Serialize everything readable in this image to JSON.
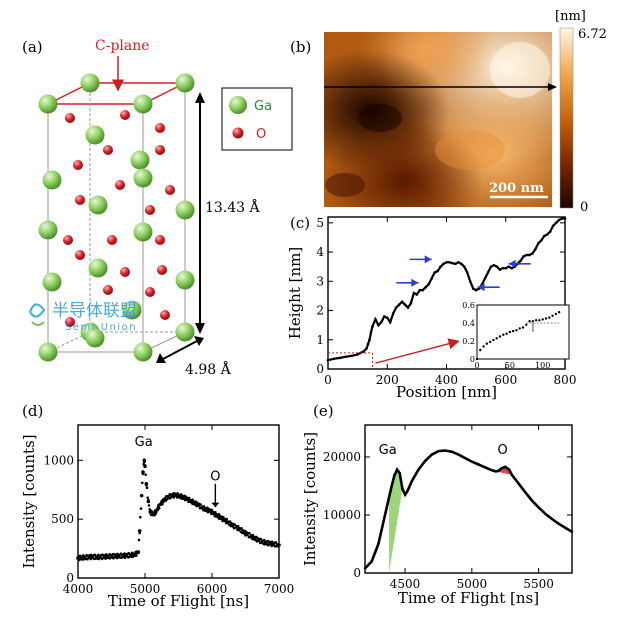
{
  "panel_labels": {
    "a": "(a)",
    "b": "(b)",
    "c": "(c)",
    "d": "(d)",
    "e": "(e)"
  },
  "crystal": {
    "c_plane_label": "C-plane",
    "legend": [
      {
        "label": "Ga",
        "color": "#7dc455",
        "text_color": "#1e8c3a"
      },
      {
        "label": "O",
        "color": "#d42028",
        "text_color": "#d42028"
      }
    ],
    "c_axis_label": "13.43 Å",
    "a_axis_label": "4.98 Å",
    "watermark": {
      "cn": "半导体联盟",
      "en": "Semi Union"
    }
  },
  "afm": {
    "colorbar_unit": "[nm]",
    "colorbar_max": "6.72",
    "colorbar_min": "0",
    "scalebar_label": "200 nm"
  },
  "chart_data": [
    {
      "id": "c",
      "type": "line",
      "xlabel": "Position [nm]",
      "ylabel": "Height [nm]",
      "xlim": [
        0,
        800
      ],
      "ylim": [
        0,
        5.2
      ],
      "xticks": [
        0,
        200,
        400,
        600,
        800
      ],
      "yticks": [
        0,
        1,
        2,
        3,
        4,
        5
      ],
      "series": [
        {
          "x": [
            0,
            20,
            40,
            60,
            80,
            100,
            110,
            120,
            130,
            135,
            140,
            145,
            150,
            160,
            170,
            180,
            190,
            200,
            210,
            220,
            230,
            240,
            250,
            260,
            270,
            280,
            290,
            300,
            310,
            320,
            330,
            340,
            350,
            360,
            370,
            380,
            390,
            400,
            410,
            420,
            430,
            440,
            450,
            460,
            470,
            480,
            490,
            500,
            510,
            520,
            530,
            540,
            550,
            560,
            570,
            580,
            590,
            600,
            610,
            620,
            630,
            640,
            650,
            660,
            670,
            680,
            690,
            700,
            710,
            720,
            730,
            740,
            750,
            760,
            770,
            780,
            790,
            800
          ],
          "y": [
            0.3,
            0.35,
            0.38,
            0.42,
            0.45,
            0.5,
            0.55,
            0.6,
            0.7,
            0.85,
            1.0,
            1.25,
            1.45,
            1.7,
            1.5,
            1.6,
            1.8,
            1.75,
            1.6,
            1.9,
            2.1,
            2.2,
            2.3,
            2.2,
            2.1,
            2.25,
            2.6,
            2.55,
            2.7,
            2.7,
            2.8,
            2.9,
            3.1,
            3.3,
            3.35,
            3.5,
            3.6,
            3.65,
            3.65,
            3.62,
            3.6,
            3.65,
            3.6,
            3.5,
            3.3,
            3.0,
            2.75,
            2.7,
            2.75,
            2.9,
            3.1,
            3.3,
            3.5,
            3.55,
            3.5,
            3.4,
            3.45,
            3.45,
            3.5,
            3.45,
            3.5,
            3.6,
            3.7,
            3.85,
            3.9,
            3.9,
            3.95,
            4.1,
            4.3,
            4.4,
            4.55,
            4.6,
            4.7,
            4.9,
            5.0,
            5.1,
            5.15,
            5.15
          ]
        }
      ],
      "arrows_at": [
        [
          350,
          3.75
        ],
        [
          305,
          2.95
        ],
        [
          610,
          3.6
        ],
        [
          505,
          2.8
        ]
      ],
      "inset": {
        "xlim": [
          0,
          140
        ],
        "ylim": [
          0,
          0.6
        ],
        "xticks": [
          0,
          50,
          100
        ],
        "yticks": [
          0,
          0.2,
          0.4,
          0.6
        ],
        "x": [
          0,
          5,
          10,
          15,
          20,
          25,
          30,
          35,
          40,
          45,
          50,
          55,
          60,
          65,
          70,
          75,
          80,
          85,
          90,
          95,
          100,
          105,
          110,
          115,
          120,
          125
        ],
        "y": [
          0.0,
          0.1,
          0.14,
          0.17,
          0.19,
          0.21,
          0.23,
          0.25,
          0.27,
          0.28,
          0.3,
          0.31,
          0.32,
          0.34,
          0.35,
          0.38,
          0.42,
          0.42,
          0.43,
          0.43,
          0.44,
          0.45,
          0.46,
          0.48,
          0.5,
          0.52
        ]
      }
    },
    {
      "id": "d",
      "type": "scatter",
      "xlabel": "Time of Flight [ns]",
      "ylabel": "Intensity [counts]",
      "xlim": [
        4000,
        7000
      ],
      "ylim": [
        0,
        1300
      ],
      "xticks": [
        4000,
        5000,
        6000,
        7000
      ],
      "yticks": [
        0,
        500,
        1000
      ],
      "labels": [
        {
          "text": "Ga",
          "x": 4980,
          "y": 1120
        },
        {
          "text": "O",
          "x": 6050,
          "y": 830
        }
      ],
      "series": [
        {
          "x": [
            4000,
            4100,
            4200,
            4300,
            4400,
            4500,
            4600,
            4700,
            4800,
            4850,
            4900,
            4920,
            4950,
            4970,
            4990,
            5000,
            5020,
            5050,
            5080,
            5120,
            5160,
            5200,
            5250,
            5300,
            5350,
            5400,
            5450,
            5500,
            5550,
            5600,
            5650,
            5700,
            5750,
            5800,
            5850,
            5900,
            5950,
            6000,
            6050,
            6100,
            6150,
            6200,
            6300,
            6400,
            6500,
            6600,
            6700,
            6800,
            6900,
            7000
          ],
          "y": [
            170,
            175,
            180,
            178,
            182,
            185,
            188,
            190,
            195,
            200,
            220,
            400,
            700,
            900,
            1000,
            950,
            800,
            650,
            560,
            540,
            560,
            600,
            640,
            670,
            690,
            700,
            705,
            700,
            690,
            680,
            665,
            650,
            635,
            620,
            600,
            585,
            575,
            560,
            540,
            525,
            505,
            490,
            450,
            420,
            380,
            350,
            320,
            300,
            290,
            280
          ]
        }
      ]
    },
    {
      "id": "e",
      "type": "line",
      "xlabel": "Time of Flight [ns]",
      "ylabel": "Intensity [counts]",
      "xlim": [
        4200,
        5750
      ],
      "ylim": [
        0,
        25500
      ],
      "xticks": [
        4500,
        5000,
        5500
      ],
      "yticks": [
        0,
        10000,
        20000
      ],
      "labels": [
        {
          "text": "Ga",
          "x": 4370,
          "y": 20500
        },
        {
          "text": "O",
          "x": 5230,
          "y": 20500
        }
      ],
      "series": [
        {
          "x": [
            4200,
            4250,
            4300,
            4350,
            4380,
            4400,
            4420,
            4440,
            4460,
            4480,
            4500,
            4520,
            4550,
            4600,
            4650,
            4700,
            4750,
            4800,
            4850,
            4900,
            4950,
            5000,
            5050,
            5100,
            5150,
            5180,
            5200,
            5220,
            5250,
            5280,
            5300,
            5350,
            5400,
            5450,
            5500,
            5550,
            5600,
            5650,
            5700,
            5750
          ],
          "y": [
            800,
            2000,
            5000,
            10000,
            13000,
            15000,
            16800,
            17800,
            17200,
            14500,
            13500,
            14200,
            15800,
            17800,
            19300,
            20400,
            21000,
            21100,
            20900,
            20400,
            19800,
            19200,
            18700,
            18200,
            17700,
            17500,
            17600,
            18000,
            18300,
            17800,
            16900,
            15400,
            13900,
            12500,
            11300,
            10200,
            9300,
            8500,
            7800,
            7100
          ]
        }
      ],
      "fills": [
        {
          "name": "Ga",
          "color": "#8fd16a",
          "x_from": 4380,
          "x_to": 4480
        },
        {
          "name": "O",
          "color": "#e03030",
          "x_from": 5180,
          "x_to": 5300
        }
      ]
    }
  ]
}
